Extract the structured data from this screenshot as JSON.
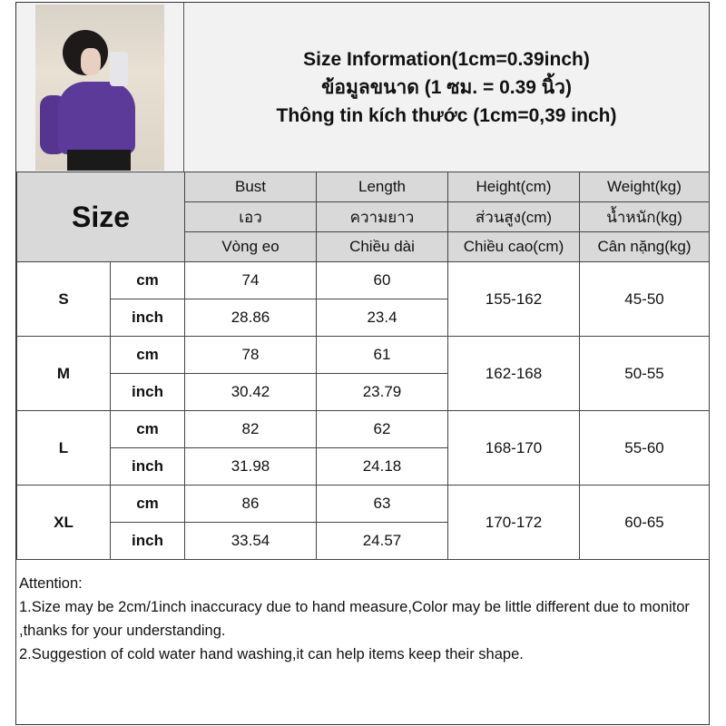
{
  "header": {
    "title_en": "Size Information(1cm=0.39inch)",
    "title_th": "ข้อมูลขนาด (1 ซม. = 0.39 นิ้ว)",
    "title_vi": "Thông tin kích thước (1cm=0,39 inch)"
  },
  "table": {
    "size_label": "Size",
    "columns": [
      {
        "en": "Bust",
        "th": "เอว",
        "vi": "Vòng eo"
      },
      {
        "en": "Length",
        "th": "ความยาว",
        "vi": "Chiều dài"
      },
      {
        "en": "Height(cm)",
        "th": "ส่วนสูง(cm)",
        "vi": "Chiều cao(cm)"
      },
      {
        "en": "Weight(kg)",
        "th": "น้ำหนัก(kg)",
        "vi": "Cân nặng(kg)"
      }
    ],
    "unit_cm": "cm",
    "unit_inch": "inch",
    "rows": [
      {
        "size": "S",
        "bust_cm": "74",
        "length_cm": "60",
        "bust_inch": "28.86",
        "length_inch": "23.4",
        "height": "155-162",
        "weight": "45-50"
      },
      {
        "size": "M",
        "bust_cm": "78",
        "length_cm": "61",
        "bust_inch": "30.42",
        "length_inch": "23.79",
        "height": "162-168",
        "weight": "50-55"
      },
      {
        "size": "L",
        "bust_cm": "82",
        "length_cm": "62",
        "bust_inch": "31.98",
        "length_inch": "24.18",
        "height": "168-170",
        "weight": "55-60"
      },
      {
        "size": "XL",
        "bust_cm": "86",
        "length_cm": "63",
        "bust_inch": "33.54",
        "length_inch": "24.57",
        "height": "170-172",
        "weight": "60-65"
      }
    ]
  },
  "attention": {
    "heading": "Attention:",
    "note1": "1.Size may be 2cm/1inch inaccuracy due to hand measure,Color may be little different due to monitor ,thanks for your understanding.",
    "note2": "2.Suggestion of cold water hand washing,it can help items keep their shape."
  },
  "colors": {
    "header_bg": "#d9d9d9",
    "top_bg": "#f2f2f2",
    "garment": "#5b3a9a"
  }
}
